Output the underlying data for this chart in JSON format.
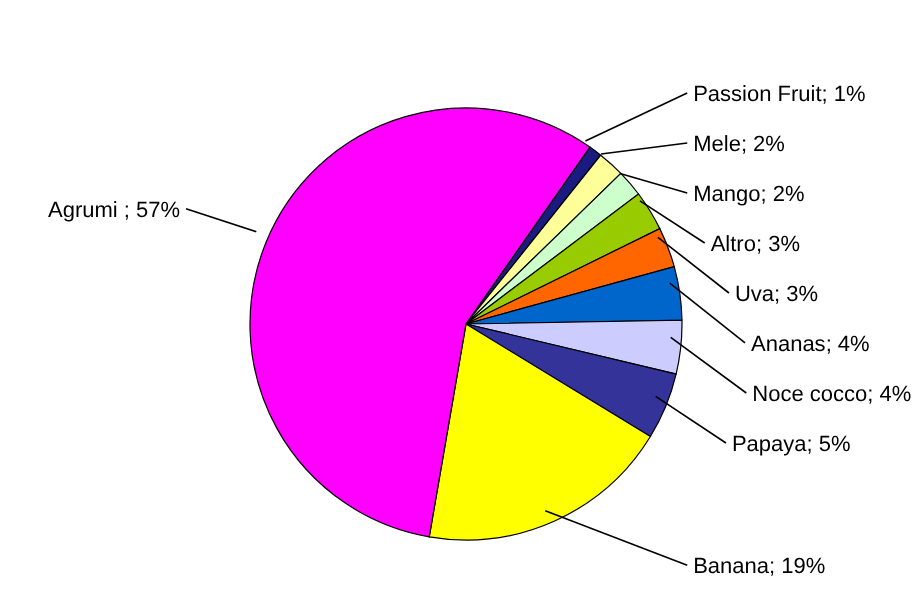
{
  "chart_data": {
    "type": "pie",
    "categories": [
      "Passion Fruit",
      "Mele",
      "Mango",
      "Altro",
      "Uva",
      "Ananas",
      "Noce cocco",
      "Papaya",
      "Banana",
      "Agrumi"
    ],
    "values": [
      1,
      2,
      2,
      3,
      3,
      4,
      4,
      5,
      19,
      57
    ],
    "colors": [
      "#1a1a80",
      "#ffff99",
      "#ccffcc",
      "#99cc00",
      "#ff6600",
      "#0066cc",
      "#ccccff",
      "#333399",
      "#ffff00",
      "#ff00ff"
    ],
    "value_labels": [
      "; 1%",
      "; 2%",
      "; 2%",
      "; 3%",
      "; 3%",
      "; 4%",
      "; 4%",
      "; 5%",
      "; 19%",
      " ; 57%"
    ],
    "legend": false
  }
}
